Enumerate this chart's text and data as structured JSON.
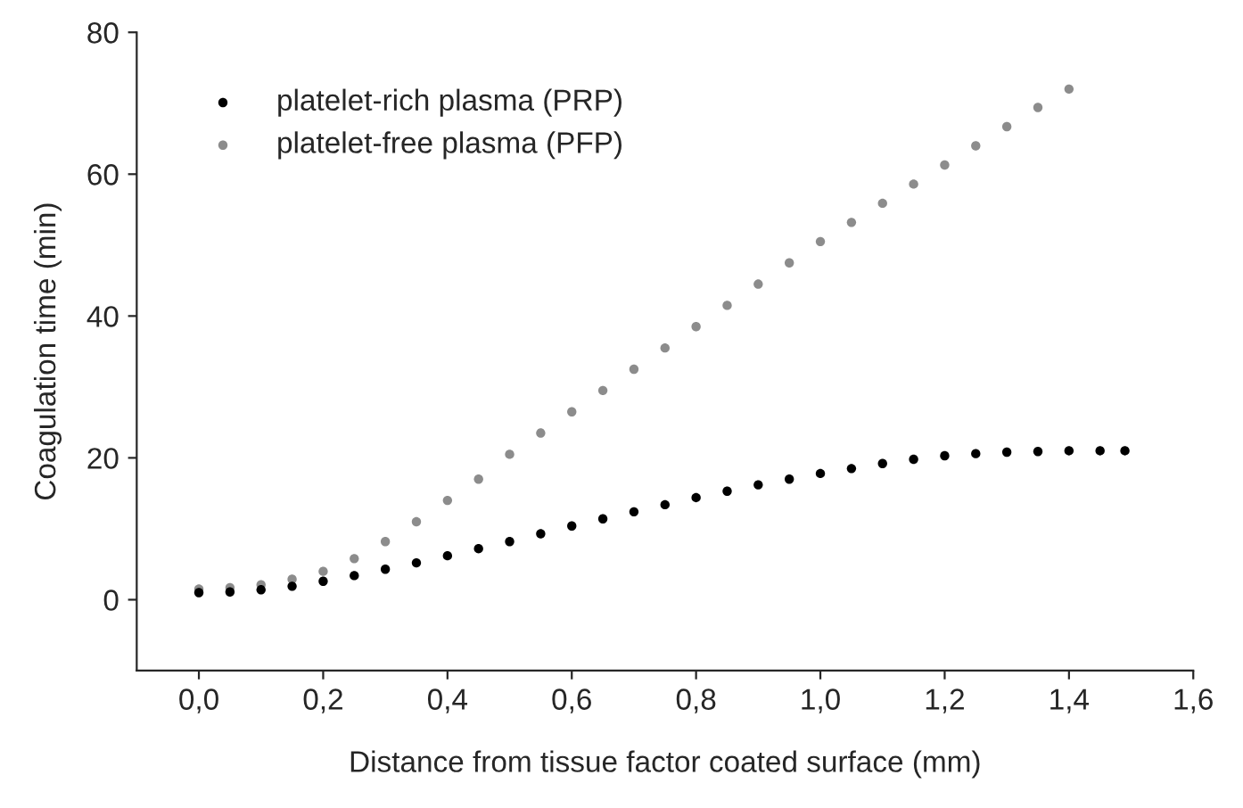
{
  "chart_data": {
    "type": "scatter",
    "xlabel": "Distance from tissue factor coated surface (mm)",
    "ylabel": "Coagulation time (min)",
    "xlim": [
      -0.1,
      1.6
    ],
    "ylim": [
      -10,
      80
    ],
    "xticks": [
      {
        "value": 0,
        "label": "0,0"
      },
      {
        "value": 0.2,
        "label": "0,2"
      },
      {
        "value": 0.4,
        "label": "0,4"
      },
      {
        "value": 0.6,
        "label": "0,6"
      },
      {
        "value": 0.8,
        "label": "0,8"
      },
      {
        "value": 1.0,
        "label": "1,0"
      },
      {
        "value": 1.2,
        "label": "1,2"
      },
      {
        "value": 1.4,
        "label": "1,4"
      },
      {
        "value": 1.6,
        "label": "1,6"
      }
    ],
    "yticks": [
      0,
      20,
      40,
      60,
      80
    ],
    "grid": false,
    "legend": "top left",
    "marker": "circle",
    "series": [
      {
        "name": "platelet-rich plasma (PRP)",
        "color": "#000000",
        "x": [
          0,
          0.05,
          0.1,
          0.15,
          0.2,
          0.25,
          0.3,
          0.35,
          0.4,
          0.45,
          0.5,
          0.55,
          0.6,
          0.65,
          0.7,
          0.75,
          0.8,
          0.85,
          0.9,
          0.95,
          1.0,
          1.05,
          1.1,
          1.15,
          1.2,
          1.25,
          1.3,
          1.35,
          1.4,
          1.45,
          1.49
        ],
        "values": [
          1.0,
          1.1,
          1.4,
          1.9,
          2.6,
          3.4,
          4.3,
          5.2,
          6.2,
          7.2,
          8.2,
          9.3,
          10.4,
          11.4,
          12.4,
          13.4,
          14.4,
          15.3,
          16.2,
          17.0,
          17.8,
          18.5,
          19.2,
          19.8,
          20.3,
          20.6,
          20.8,
          20.9,
          21.0,
          21.0,
          21.0
        ]
      },
      {
        "name": "platelet-free plasma (PFP)",
        "color": "#8c8c8c",
        "x": [
          0,
          0.05,
          0.1,
          0.15,
          0.2,
          0.25,
          0.3,
          0.35,
          0.4,
          0.45,
          0.5,
          0.55,
          0.6,
          0.65,
          0.7,
          0.75,
          0.8,
          0.85,
          0.9,
          0.95,
          1.0,
          1.05,
          1.1,
          1.15,
          1.2,
          1.25,
          1.3,
          1.35,
          1.4
        ],
        "values": [
          1.5,
          1.7,
          2.1,
          2.9,
          4.0,
          5.8,
          8.2,
          11.0,
          14.0,
          17.0,
          20.5,
          23.5,
          26.5,
          29.5,
          32.5,
          35.5,
          38.5,
          41.5,
          44.5,
          47.5,
          50.5,
          53.2,
          55.9,
          58.6,
          61.3,
          64.0,
          66.7,
          69.4,
          72.0
        ]
      }
    ]
  }
}
